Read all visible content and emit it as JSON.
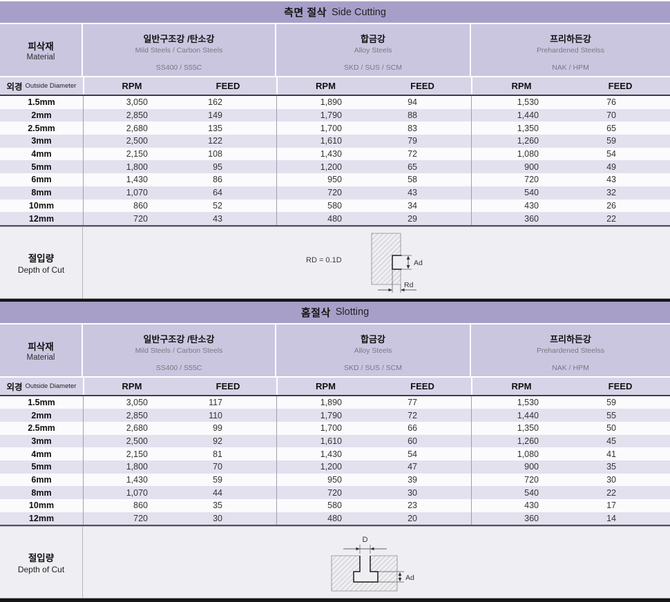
{
  "colors": {
    "title_bar": "#a79fc8",
    "material_header": "#cbc6e0",
    "column_header": "#d8d4e8",
    "row_stripe": "#e3e1ee",
    "row_plain": "#fbfbfd",
    "depth_section_bg": "#efeef2",
    "dark_rule": "#3d3b4a",
    "black_band": "#141414"
  },
  "tables": [
    {
      "title_ko": "측면 절삭",
      "title_en": "Side Cutting",
      "material_label_ko": "피삭재",
      "material_label_en": "Material",
      "materials": [
        {
          "name_ko": "일반구조강 /탄소강",
          "name_en": "Mild Steels / Carbon Steels",
          "grades": "SS400 / S55C"
        },
        {
          "name_ko": "합금강",
          "name_en": "Alloy Steels",
          "grades": "SKD / SUS / SCM"
        },
        {
          "name_ko": "프리하든강",
          "name_en": "Prehardened Steelss",
          "grades": "NAK / HPM"
        }
      ],
      "diameter_label_ko": "외경",
      "diameter_label_en": "Outside Diameter",
      "col_headers": [
        "RPM",
        "FEED"
      ],
      "rows": [
        {
          "dia": "1.5mm",
          "values": [
            [
              "3,050",
              "162"
            ],
            [
              "1,890",
              "94"
            ],
            [
              "1,530",
              "76"
            ]
          ]
        },
        {
          "dia": "2mm",
          "values": [
            [
              "2,850",
              "149"
            ],
            [
              "1,790",
              "88"
            ],
            [
              "1,440",
              "70"
            ]
          ]
        },
        {
          "dia": "2.5mm",
          "values": [
            [
              "2,680",
              "135"
            ],
            [
              "1,700",
              "83"
            ],
            [
              "1,350",
              "65"
            ]
          ]
        },
        {
          "dia": "3mm",
          "values": [
            [
              "2,500",
              "122"
            ],
            [
              "1,610",
              "79"
            ],
            [
              "1,260",
              "59"
            ]
          ]
        },
        {
          "dia": "4mm",
          "values": [
            [
              "2,150",
              "108"
            ],
            [
              "1,430",
              "72"
            ],
            [
              "1,080",
              "54"
            ]
          ]
        },
        {
          "dia": "5mm",
          "values": [
            [
              "1,800",
              "95"
            ],
            [
              "1,200",
              "65"
            ],
            [
              "900",
              "49"
            ]
          ]
        },
        {
          "dia": "6mm",
          "values": [
            [
              "1,430",
              "86"
            ],
            [
              "950",
              "58"
            ],
            [
              "720",
              "43"
            ]
          ]
        },
        {
          "dia": "8mm",
          "values": [
            [
              "1,070",
              "64"
            ],
            [
              "720",
              "43"
            ],
            [
              "540",
              "32"
            ]
          ]
        },
        {
          "dia": "10mm",
          "values": [
            [
              "860",
              "52"
            ],
            [
              "580",
              "34"
            ],
            [
              "430",
              "26"
            ]
          ]
        },
        {
          "dia": "12mm",
          "values": [
            [
              "720",
              "43"
            ],
            [
              "480",
              "29"
            ],
            [
              "360",
              "22"
            ]
          ]
        }
      ],
      "depth_label_ko": "절입량",
      "depth_label_en": "Depth of Cut",
      "diagram": {
        "formula": "RD = 0.1D",
        "label_ad": "Ad",
        "label_rd": "Rd"
      }
    },
    {
      "title_ko": "홈절삭",
      "title_en": "Slotting",
      "material_label_ko": "피삭재",
      "material_label_en": "Material",
      "materials": [
        {
          "name_ko": "일반구조강 /탄소강",
          "name_en": "Mild Steels / Carbon Steels",
          "grades": "SS400 / S55C"
        },
        {
          "name_ko": "합금강",
          "name_en": "Alloy Steels",
          "grades": "SKD / SUS / SCM"
        },
        {
          "name_ko": "프리하든강",
          "name_en": "Prehardened Steelss",
          "grades": "NAK / HPM"
        }
      ],
      "diameter_label_ko": "외경",
      "diameter_label_en": "Outside Diameter",
      "col_headers": [
        "RPM",
        "FEED"
      ],
      "rows": [
        {
          "dia": "1.5mm",
          "values": [
            [
              "3,050",
              "117"
            ],
            [
              "1,890",
              "77"
            ],
            [
              "1,530",
              "59"
            ]
          ]
        },
        {
          "dia": "2mm",
          "values": [
            [
              "2,850",
              "110"
            ],
            [
              "1,790",
              "72"
            ],
            [
              "1,440",
              "55"
            ]
          ]
        },
        {
          "dia": "2.5mm",
          "values": [
            [
              "2,680",
              "99"
            ],
            [
              "1,700",
              "66"
            ],
            [
              "1,350",
              "50"
            ]
          ]
        },
        {
          "dia": "3mm",
          "values": [
            [
              "2,500",
              "92"
            ],
            [
              "1,610",
              "60"
            ],
            [
              "1,260",
              "45"
            ]
          ]
        },
        {
          "dia": "4mm",
          "values": [
            [
              "2,150",
              "81"
            ],
            [
              "1,430",
              "54"
            ],
            [
              "1,080",
              "41"
            ]
          ]
        },
        {
          "dia": "5mm",
          "values": [
            [
              "1,800",
              "70"
            ],
            [
              "1,200",
              "47"
            ],
            [
              "900",
              "35"
            ]
          ]
        },
        {
          "dia": "6mm",
          "values": [
            [
              "1,430",
              "59"
            ],
            [
              "950",
              "39"
            ],
            [
              "720",
              "30"
            ]
          ]
        },
        {
          "dia": "8mm",
          "values": [
            [
              "1,070",
              "44"
            ],
            [
              "720",
              "30"
            ],
            [
              "540",
              "22"
            ]
          ]
        },
        {
          "dia": "10mm",
          "values": [
            [
              "860",
              "35"
            ],
            [
              "580",
              "23"
            ],
            [
              "430",
              "17"
            ]
          ]
        },
        {
          "dia": "12mm",
          "values": [
            [
              "720",
              "30"
            ],
            [
              "480",
              "20"
            ],
            [
              "360",
              "14"
            ]
          ]
        }
      ],
      "depth_label_ko": "절입량",
      "depth_label_en": "Depth of Cut",
      "diagram": {
        "label_d": "D",
        "label_ad": "Ad"
      }
    }
  ]
}
